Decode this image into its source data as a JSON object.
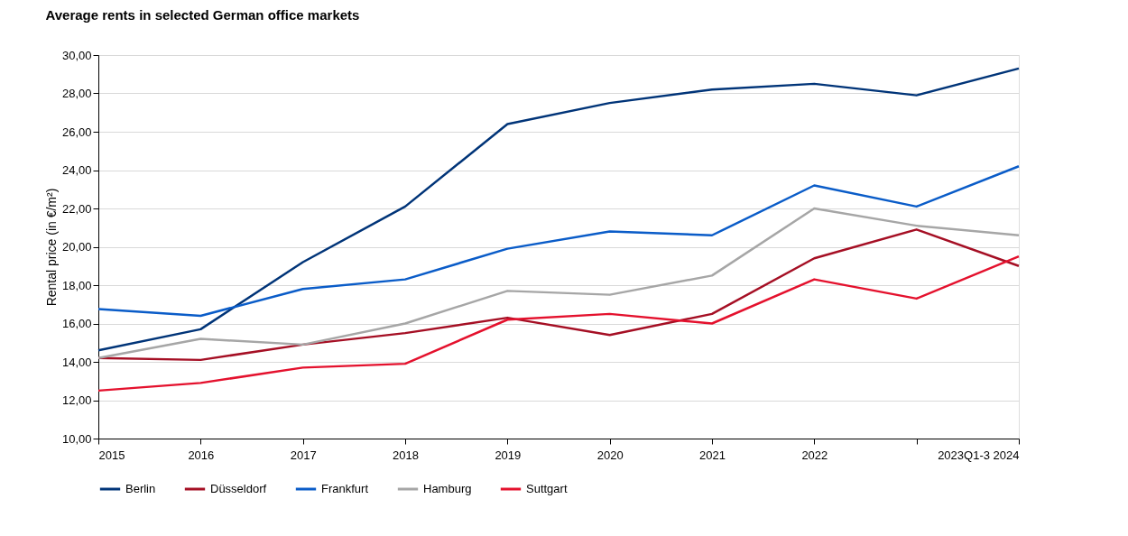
{
  "chart_data": {
    "type": "line",
    "title": "Average rents in selected German office markets",
    "ylabel": "Rental price (in €/m²)",
    "categories": [
      "2015",
      "2016",
      "2017",
      "2018",
      "2019",
      "2020",
      "2021",
      "2022",
      null,
      "2023Q1-3 2024"
    ],
    "series": [
      {
        "name": "Berlin",
        "color": "#003478",
        "values": [
          14.6,
          15.7,
          19.2,
          22.1,
          26.4,
          27.5,
          28.2,
          28.5,
          27.9,
          29.3
        ]
      },
      {
        "name": "Düsseldorf",
        "color": "#a50f24",
        "values": [
          14.2,
          14.1,
          14.9,
          15.5,
          16.3,
          15.4,
          16.5,
          19.4,
          20.9,
          19.0
        ]
      },
      {
        "name": "Frankfurt",
        "color": "#0a5cc8",
        "values": [
          16.75,
          16.4,
          17.8,
          18.3,
          19.9,
          20.8,
          20.6,
          23.2,
          22.1,
          24.2
        ]
      },
      {
        "name": "Hamburg",
        "color": "#a6a6a6",
        "values": [
          14.2,
          15.2,
          14.9,
          16.0,
          17.7,
          17.5,
          18.5,
          22.0,
          21.1,
          20.6
        ]
      },
      {
        "name": "Suttgart",
        "color": "#e4112d",
        "values": [
          12.5,
          12.9,
          13.7,
          13.9,
          16.2,
          16.5,
          16.0,
          18.3,
          17.3,
          19.5
        ]
      }
    ],
    "ylim": [
      10,
      30
    ],
    "yticks": [
      {
        "value": 10,
        "label": "10,00"
      },
      {
        "value": 12,
        "label": "12,00"
      },
      {
        "value": 14,
        "label": "14,00"
      },
      {
        "value": 16,
        "label": "16,00"
      },
      {
        "value": 18,
        "label": "18,00"
      },
      {
        "value": 20,
        "label": "20,00"
      },
      {
        "value": 22,
        "label": "22,00"
      },
      {
        "value": 24,
        "label": "24,00"
      },
      {
        "value": 26,
        "label": "26,00"
      },
      {
        "value": 28,
        "label": "28,00"
      },
      {
        "value": 30,
        "label": "30,00"
      }
    ],
    "grid": "y",
    "legend": "bottom",
    "marker": "none",
    "line_style": "solid"
  }
}
